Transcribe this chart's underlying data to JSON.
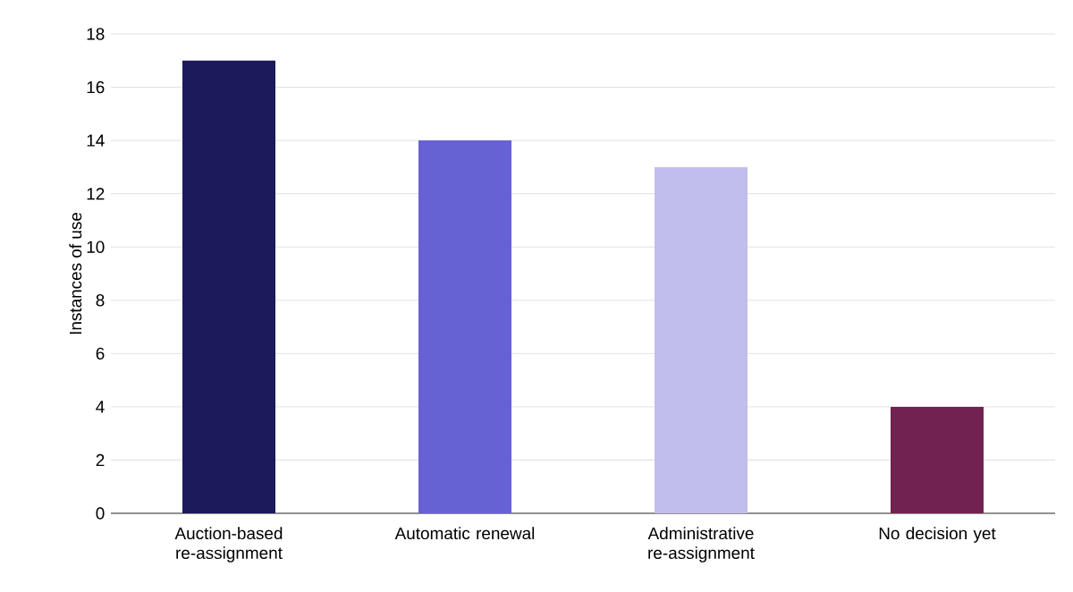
{
  "chart_data": {
    "type": "bar",
    "ylabel": "Instances of use",
    "categories": [
      "Auction-based re-assignment",
      "Automatic renewal",
      "Administrative re-assignment",
      "No decision yet"
    ],
    "values": [
      17,
      14,
      13,
      4
    ],
    "colors": [
      "#1c1a5a",
      "#6762d4",
      "#c1bdec",
      "#722251"
    ],
    "ylim": [
      0,
      18
    ],
    "yticks": [
      0,
      2,
      4,
      6,
      8,
      10,
      12,
      14,
      16,
      18
    ],
    "grid": "y"
  }
}
